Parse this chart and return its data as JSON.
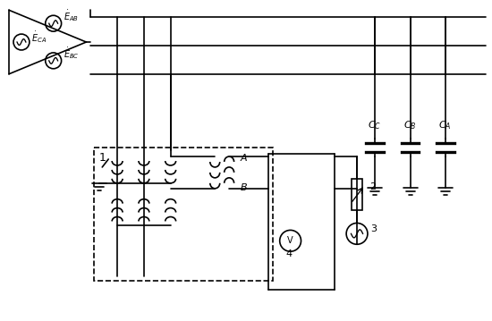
{
  "bg_color": "#ffffff",
  "line_color": "#000000",
  "lw": 1.2,
  "fig_width": 5.5,
  "fig_height": 3.59,
  "dpi": 100,
  "labels": {
    "E_AB": "$\\dot{E}_{AB}$",
    "E_CA": "$\\dot{E}_{CA}$",
    "E_BC": "$\\dot{E}_{BC}$",
    "C_C": "$C_C$",
    "C_B": "$C_B$",
    "C_A": "$C_A$",
    "A": "$A$",
    "B": "$B$",
    "label1": "1",
    "label2": "2",
    "label3": "3",
    "label4": "4"
  }
}
